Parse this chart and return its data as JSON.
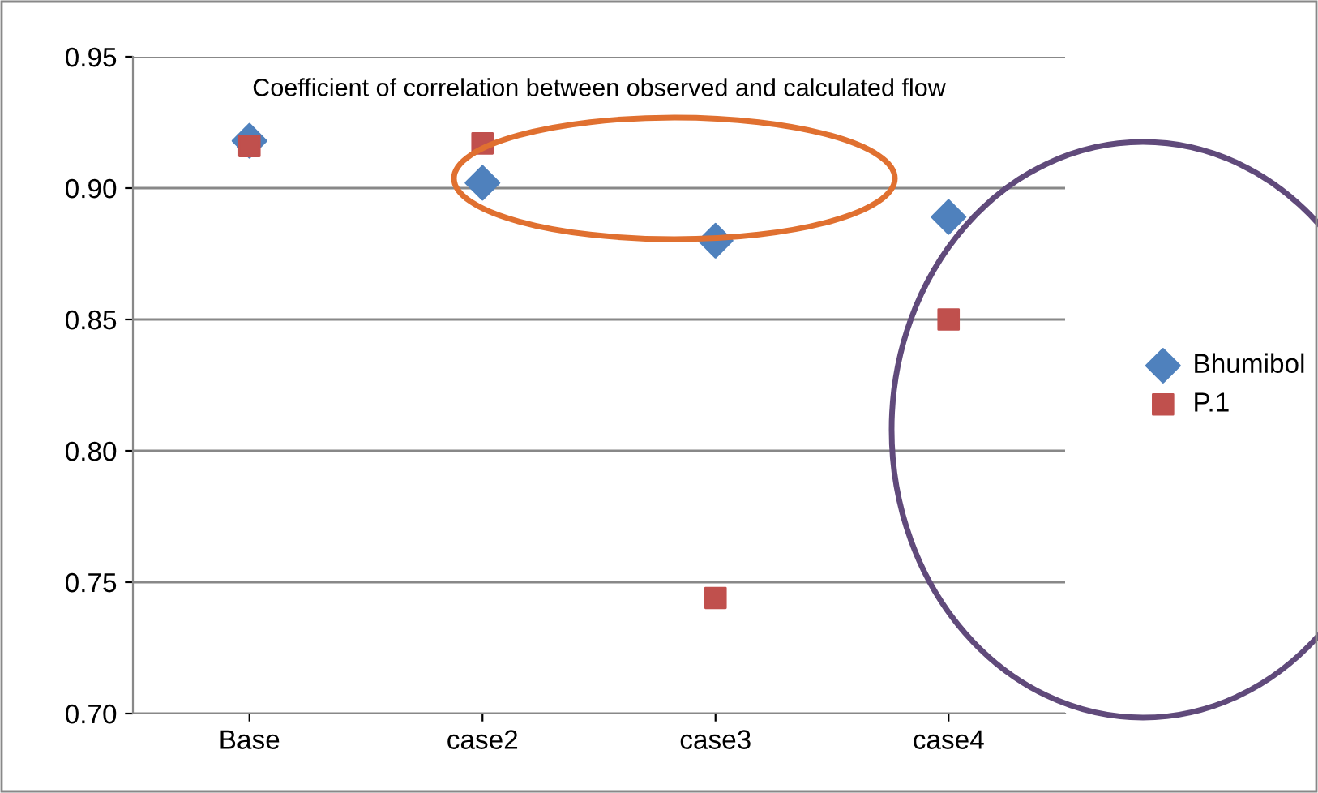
{
  "chart_data": {
    "type": "scatter",
    "title": "Coefficient of correlation between observed and calculated flow",
    "categories": [
      "Base",
      "case2",
      "case3",
      "case4"
    ],
    "series": [
      {
        "name": "Bhumibol",
        "color": "#4f81bd",
        "marker": "diamond",
        "values": [
          0.918,
          0.902,
          0.88,
          0.889
        ]
      },
      {
        "name": "P.1",
        "color": "#c0504d",
        "marker": "square",
        "values": [
          0.916,
          0.917,
          0.744,
          0.85
        ]
      }
    ],
    "ylim": [
      0.7,
      0.95
    ],
    "yticks": [
      {
        "value": 0.7,
        "label": "0.70"
      },
      {
        "value": 0.75,
        "label": "0.75"
      },
      {
        "value": 0.8,
        "label": "0.80"
      },
      {
        "value": 0.85,
        "label": "0.85"
      },
      {
        "value": 0.9,
        "label": "0.90"
      },
      {
        "value": 0.95,
        "label": "0.95"
      }
    ],
    "grid": "y",
    "legend": "right"
  }
}
